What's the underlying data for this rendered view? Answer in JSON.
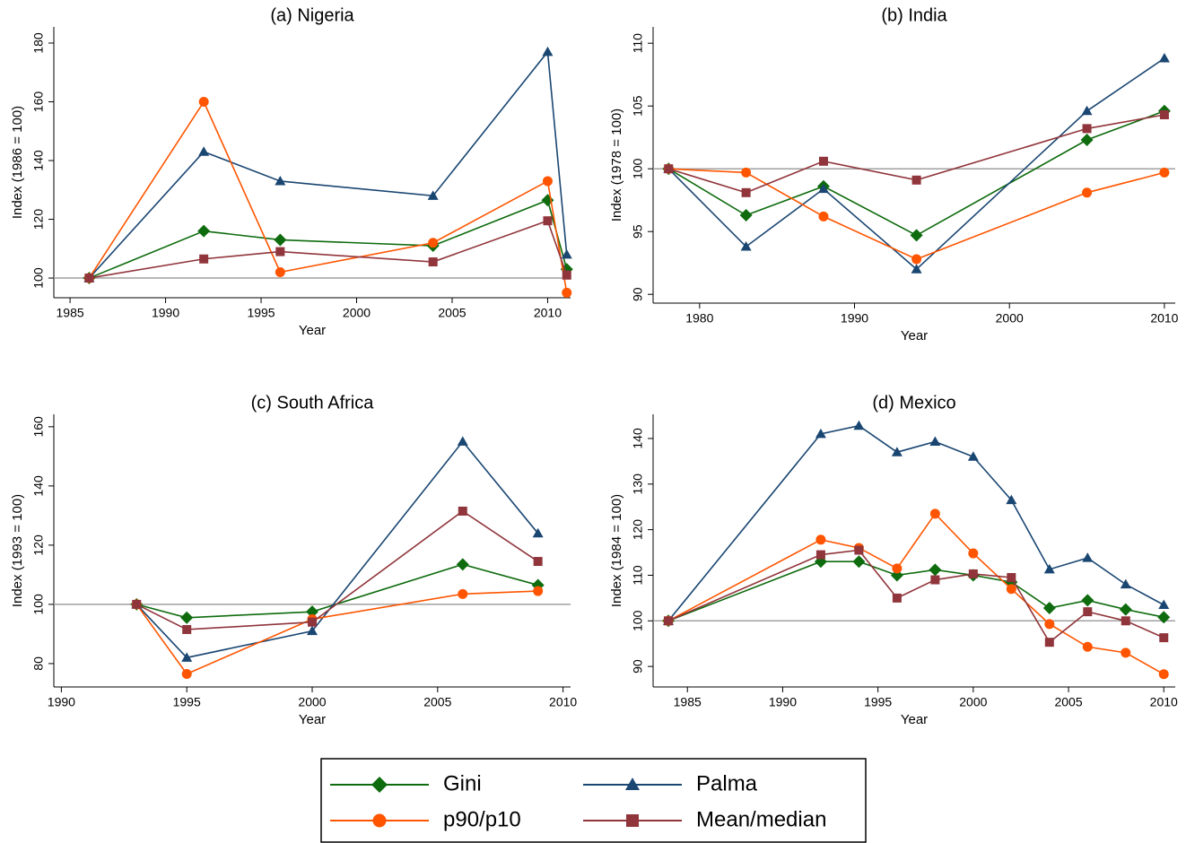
{
  "chart_data": [
    {
      "type": "line",
      "title": "(a) Nigeria",
      "x_label": "Year",
      "y_label": "Index (1986 = 100)",
      "x": [
        1986,
        1992,
        1996,
        2004,
        2010,
        2011
      ],
      "xlim": [
        1984.15,
        2011.2
      ],
      "xticks": [
        1985,
        1990,
        1995,
        2000,
        2005,
        2010
      ],
      "ylim": [
        93.3,
        185.5
      ],
      "yticks": [
        100,
        120,
        140,
        160,
        180
      ],
      "reference_line": 100,
      "series": [
        {
          "name": "Gini",
          "color": "#0e6b0e",
          "marker": "diamond",
          "values": [
            100,
            116,
            113,
            111,
            126.5,
            103
          ]
        },
        {
          "name": "Palma",
          "color": "#1a4672",
          "marker": "triangle",
          "values": [
            100,
            143,
            133,
            128,
            177,
            108
          ]
        },
        {
          "name": "p90/p10",
          "color": "#ff5500",
          "marker": "circle",
          "values": [
            100,
            160,
            102,
            112,
            133,
            95
          ]
        },
        {
          "name": "Mean/median",
          "color": "#90353b",
          "marker": "square",
          "values": [
            100,
            106.5,
            109,
            105.5,
            119.5,
            101
          ]
        }
      ]
    },
    {
      "type": "line",
      "title": "(b) India",
      "x_label": "Year",
      "y_label": "Index (1978 = 100)",
      "x": [
        1978,
        1983,
        1988,
        1994,
        2005,
        2010
      ],
      "xlim": [
        1977,
        2010.7
      ],
      "xticks": [
        1980,
        1990,
        2000,
        2010
      ],
      "ylim": [
        89.3,
        111.3
      ],
      "yticks": [
        90,
        95,
        100,
        105,
        110
      ],
      "reference_line": 100,
      "series": [
        {
          "name": "Gini",
          "color": "#0e6b0e",
          "marker": "diamond",
          "values": [
            100,
            96.3,
            98.6,
            94.7,
            102.3,
            104.6
          ]
        },
        {
          "name": "Palma",
          "color": "#1a4672",
          "marker": "triangle",
          "values": [
            100,
            93.8,
            98.4,
            92,
            104.6,
            108.8
          ]
        },
        {
          "name": "p90/p10",
          "color": "#ff5500",
          "marker": "circle",
          "values": [
            100,
            99.7,
            96.2,
            92.8,
            98.1,
            99.7
          ]
        },
        {
          "name": "Mean/median",
          "color": "#90353b",
          "marker": "square",
          "values": [
            100,
            98.1,
            100.6,
            99.1,
            103.2,
            104.3
          ]
        }
      ]
    },
    {
      "type": "line",
      "title": "(c) South Africa",
      "x_label": "Year",
      "y_label": "Index (1993 = 100)",
      "x": [
        1993,
        1995,
        2000,
        2006,
        2009
      ],
      "xlim": [
        1989.7,
        2010.3
      ],
      "xticks": [
        1990,
        1995,
        2000,
        2005,
        2010
      ],
      "ylim": [
        72.1,
        164.2
      ],
      "yticks": [
        80,
        100,
        120,
        140,
        160
      ],
      "reference_line": 100,
      "series": [
        {
          "name": "Gini",
          "color": "#0e6b0e",
          "marker": "diamond",
          "values": [
            100,
            95.5,
            97.5,
            113.5,
            106.5
          ]
        },
        {
          "name": "Palma",
          "color": "#1a4672",
          "marker": "triangle",
          "values": [
            100,
            82,
            91,
            155,
            124
          ]
        },
        {
          "name": "p90/p10",
          "color": "#ff5500",
          "marker": "circle",
          "values": [
            100,
            76.5,
            95,
            103.5,
            104.5
          ]
        },
        {
          "name": "Mean/median",
          "color": "#90353b",
          "marker": "square",
          "values": [
            100,
            91.5,
            94,
            131.5,
            114.5
          ]
        }
      ]
    },
    {
      "type": "line",
      "title": "(d) Mexico",
      "x_label": "Year",
      "y_label": "Index (1984 = 100)",
      "x": [
        1984,
        1992,
        1994,
        1996,
        1998,
        2000,
        2002,
        2004,
        2006,
        2008,
        2010
      ],
      "xlim": [
        1983.2,
        2010.6
      ],
      "xticks": [
        1985,
        1990,
        1995,
        2000,
        2005,
        2010
      ],
      "ylim": [
        85.5,
        145.3
      ],
      "yticks": [
        90,
        100,
        110,
        120,
        130,
        140
      ],
      "reference_line": 100,
      "series": [
        {
          "name": "Gini",
          "color": "#0e6b0e",
          "marker": "diamond",
          "values": [
            100,
            113,
            113,
            110,
            111.2,
            110,
            108.5,
            102.8,
            104.5,
            102.5,
            100.8
          ]
        },
        {
          "name": "Palma",
          "color": "#1a4672",
          "marker": "triangle",
          "values": [
            100,
            141,
            142.8,
            137,
            139.3,
            136,
            126.5,
            111.3,
            113.8,
            108,
            103.5
          ]
        },
        {
          "name": "p90/p10",
          "color": "#ff5500",
          "marker": "circle",
          "values": [
            100,
            117.8,
            116,
            111.5,
            123.5,
            114.8,
            107,
            99.3,
            94.3,
            93,
            88.3
          ]
        },
        {
          "name": "Mean/median",
          "color": "#90353b",
          "marker": "square",
          "values": [
            100,
            114.5,
            115.5,
            105,
            109,
            110.3,
            109.5,
            95.3,
            102,
            100,
            96.3
          ]
        }
      ]
    }
  ]
}
